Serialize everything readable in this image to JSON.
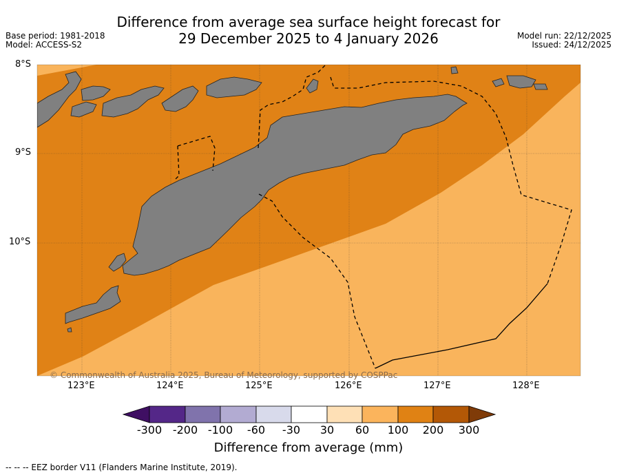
{
  "title": {
    "line1": "Difference from average sea surface height forecast for",
    "line2": "29 December 2025 to 4 January 2026"
  },
  "meta_left": {
    "base_period": "Base period: 1981-2018",
    "model": "Model: ACCESS-S2"
  },
  "meta_right": {
    "model_run": "Model run: 22/12/2025",
    "issued": "Issued: 24/12/2025"
  },
  "map": {
    "lat_labels": [
      "8°S",
      "9°S",
      "10°S"
    ],
    "lon_labels": [
      "123°E",
      "124°E",
      "125°E",
      "126°E",
      "127°E",
      "128°E"
    ],
    "copyright": "© Commonwealth of Australia 2025, Bureau of Meteorology, supported by COSPPac",
    "colors": {
      "ocean_100_200": "#e08216",
      "ocean_60_100": "#f9b45c",
      "land": "#808080",
      "coast": "#222222"
    }
  },
  "colorbar": {
    "ticks": [
      "-300",
      "-200",
      "-100",
      "-60",
      "-30",
      "30",
      "60",
      "100",
      "200",
      "300"
    ],
    "colors": [
      "#3f0f63",
      "#542788",
      "#8073ac",
      "#b2abd2",
      "#d8daeb",
      "#ffffff",
      "#fee0b6",
      "#fbb45c",
      "#e08214",
      "#b35806",
      "#7f3b08"
    ],
    "label": "Difference from average (mm)"
  },
  "footer": {
    "legend": "-- -- -- EEZ border V11 (Flanders Marine Institute, 2019)."
  }
}
